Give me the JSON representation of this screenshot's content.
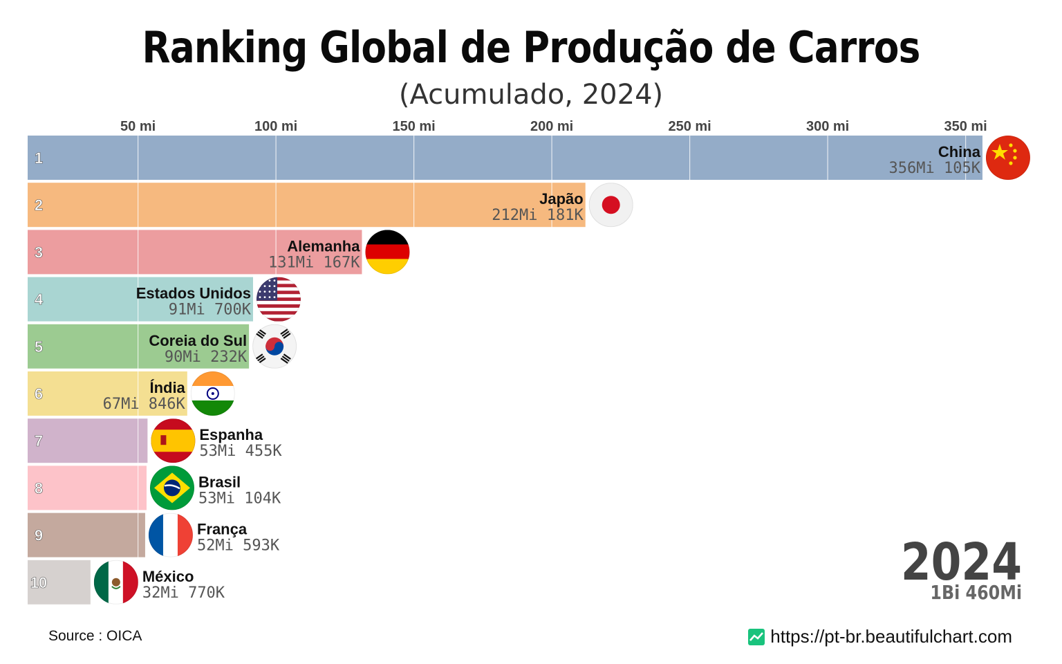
{
  "title": "Ranking Global de Produção de Carros",
  "subtitle": "(Acumulado, 2024)",
  "year": "2024",
  "total": "1Bi 460Mi",
  "source": "Source : OICA",
  "credit": "https://pt-br.beautifulchart.com",
  "chart_data": {
    "type": "bar",
    "orientation": "horizontal",
    "title": "Ranking Global de Produção de Carros",
    "subtitle": "(Acumulado, 2024)",
    "xlim": [
      10,
      356
    ],
    "x_ticks": [
      50,
      100,
      150,
      200,
      250,
      300,
      350
    ],
    "x_tick_labels": [
      "50 mi",
      "100 mi",
      "150 mi",
      "200 mi",
      "250 mi",
      "300 mi",
      "350 mi"
    ],
    "grid": true,
    "unit": "millions",
    "bars": [
      {
        "rank": "1",
        "name": "China",
        "value": 356.105,
        "label": "356Mi 105K",
        "color": "#94acc8",
        "flag": "china-flag-icon"
      },
      {
        "rank": "2",
        "name": "Japão",
        "value": 212.181,
        "label": "212Mi 181K",
        "color": "#f6b97f",
        "flag": "japan-flag-icon"
      },
      {
        "rank": "3",
        "name": "Alemanha",
        "value": 131.167,
        "label": "131Mi 167K",
        "color": "#ec9d9f",
        "flag": "germany-flag-icon"
      },
      {
        "rank": "4",
        "name": "Estados Unidos",
        "value": 91.7,
        "label": "91Mi 700K",
        "color": "#a9d5d2",
        "flag": "usa-flag-icon"
      },
      {
        "rank": "5",
        "name": "Coreia do Sul",
        "value": 90.232,
        "label": "90Mi 232K",
        "color": "#9ccb91",
        "flag": "south-korea-flag-icon"
      },
      {
        "rank": "6",
        "name": "Índia",
        "value": 67.846,
        "label": "67Mi 846K",
        "color": "#f4df92",
        "flag": "india-flag-icon"
      },
      {
        "rank": "7",
        "name": "Espanha",
        "value": 53.455,
        "label": "53Mi 455K",
        "color": "#d0b3cb",
        "flag": "spain-flag-icon"
      },
      {
        "rank": "8",
        "name": "Brasil",
        "value": 53.104,
        "label": "53Mi 104K",
        "color": "#fdc3c9",
        "flag": "brazil-flag-icon"
      },
      {
        "rank": "9",
        "name": "França",
        "value": 52.593,
        "label": "52Mi 593K",
        "color": "#c4a99e",
        "flag": "france-flag-icon"
      },
      {
        "rank": "10",
        "name": "México",
        "value": 32.77,
        "label": "32Mi 770K",
        "color": "#d6d1cf",
        "flag": "mexico-flag-icon"
      }
    ]
  }
}
